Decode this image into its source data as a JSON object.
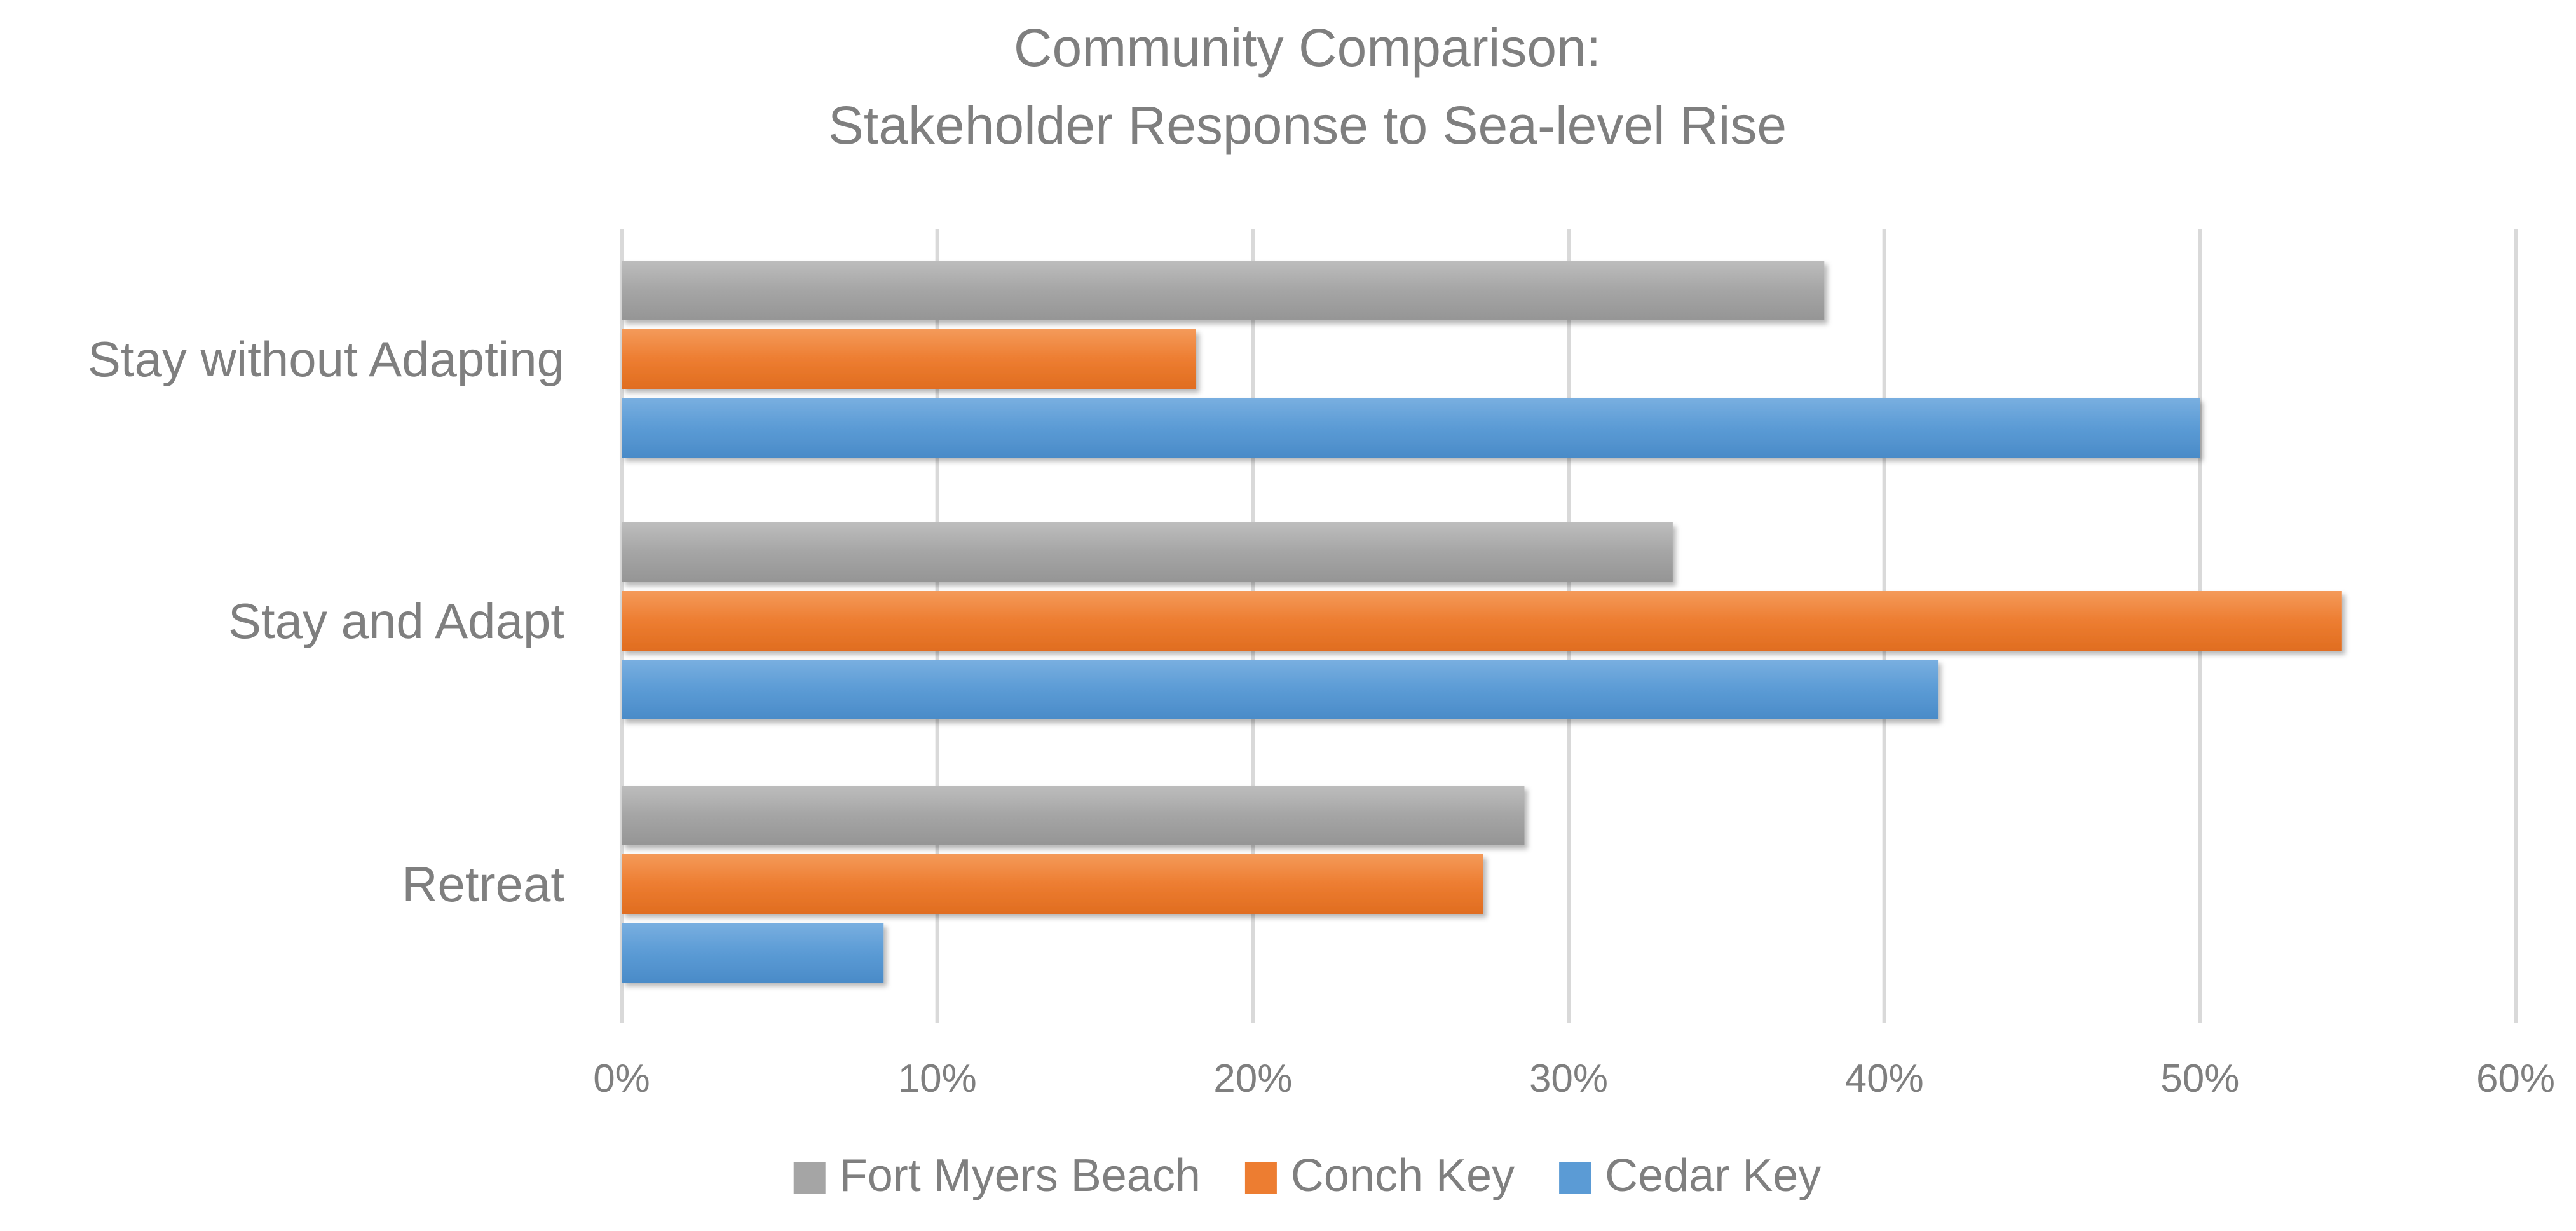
{
  "chart_data": {
    "type": "bar",
    "orientation": "horizontal",
    "title_lines": [
      "Community Comparison:",
      "Stakeholder Response to Sea-level Rise"
    ],
    "categories": [
      "Stay without Adapting",
      "Stay and Adapt",
      "Retreat"
    ],
    "series": [
      {
        "name": "Fort Myers Beach",
        "color": "#a5a5a5",
        "values": [
          38.1,
          33.3,
          28.6
        ]
      },
      {
        "name": "Conch Key",
        "color": "#ed7d31",
        "values": [
          18.2,
          54.5,
          27.3
        ]
      },
      {
        "name": "Cedar Key",
        "color": "#5b9bd5",
        "values": [
          50.0,
          41.7,
          8.3
        ]
      }
    ],
    "x_ticks": [
      "0%",
      "10%",
      "20%",
      "30%",
      "40%",
      "50%",
      "60%"
    ],
    "xlim": [
      0,
      60
    ],
    "unit": "%",
    "grid": true,
    "legend_position": "bottom"
  }
}
